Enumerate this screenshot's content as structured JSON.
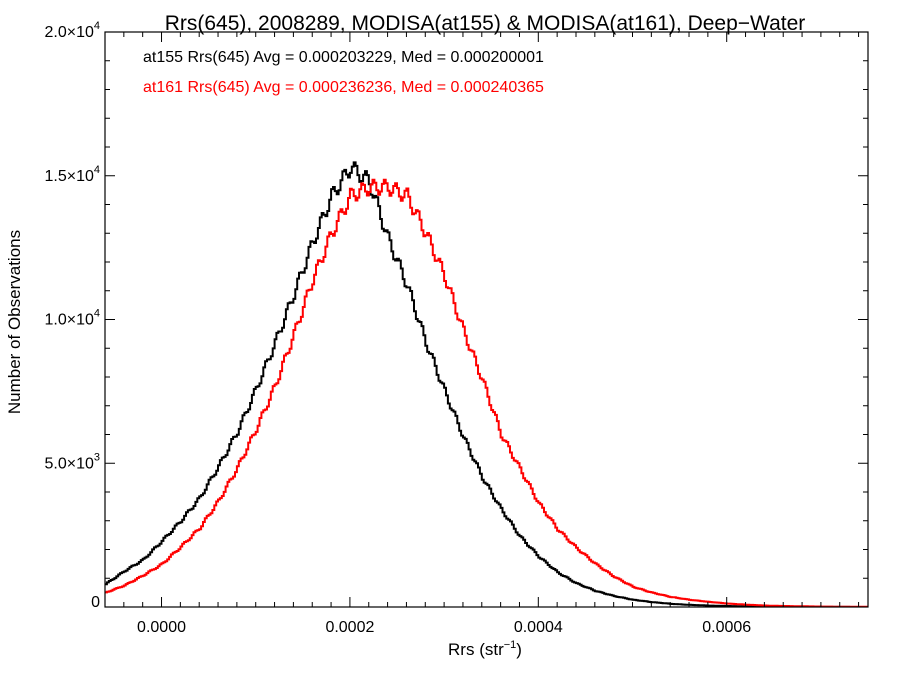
{
  "chart_data": {
    "type": "line",
    "title": "Rrs(645), 2008289, MODISA(at155) & MODISA(at161), Deep−Water",
    "xlabel": "Rrs (str",
    "xlabel_sup": "−1",
    "xlabel_close": ")",
    "ylabel": "Number of Observations",
    "xlim": [
      -6e-05,
      0.00075
    ],
    "ylim": [
      0,
      20000
    ],
    "x_ticks": [
      {
        "value": 0.0,
        "label": "0.0000"
      },
      {
        "value": 0.0002,
        "label": "0.0002"
      },
      {
        "value": 0.0004,
        "label": "0.0004"
      },
      {
        "value": 0.0006,
        "label": "0.0006"
      }
    ],
    "y_ticks": [
      {
        "value": 0,
        "mant": "0",
        "exp": ""
      },
      {
        "value": 5000,
        "mant": "5.0×10",
        "exp": "3"
      },
      {
        "value": 10000,
        "mant": "1.0×10",
        "exp": "4"
      },
      {
        "value": 15000,
        "mant": "1.5×10",
        "exp": "4"
      },
      {
        "value": 20000,
        "mant": "2.0×10",
        "exp": "4"
      }
    ],
    "grid": false,
    "annotations": [
      {
        "text": "at155 Rrs(645) Avg = 0.000203229, Med = 0.000200001",
        "color": "#000000"
      },
      {
        "text": "at161 Rrs(645) Avg = 0.000236236, Med = 0.000240365",
        "color": "#ff0000"
      }
    ],
    "series": [
      {
        "color": "#000000",
        "x": [
          -6e-05,
          -4e-05,
          -2e-05,
          0.0,
          2e-05,
          4e-05,
          6e-05,
          8e-05,
          0.0001,
          0.00012,
          0.00014,
          0.00016,
          0.00018,
          0.0002,
          0.00022,
          0.00024,
          0.00026,
          0.00028,
          0.0003,
          0.00032,
          0.00034,
          0.00036,
          0.00038,
          0.0004,
          0.00042,
          0.00044,
          0.00046,
          0.00048,
          0.0005,
          0.00052,
          0.00054,
          0.00056,
          0.00058,
          0.0006,
          0.00062,
          0.00064,
          0.00066,
          0.00068,
          0.0007,
          0.00072,
          0.00075
        ],
        "y": [
          800,
          1250,
          1650,
          2300,
          3000,
          3800,
          4900,
          6100,
          7600,
          9200,
          10900,
          12700,
          14300,
          15300,
          14800,
          12800,
          11200,
          9200,
          7500,
          5900,
          4500,
          3400,
          2450,
          1750,
          1200,
          820,
          560,
          380,
          250,
          170,
          110,
          75,
          50,
          35,
          22,
          14,
          9,
          6,
          4,
          2,
          1
        ]
      },
      {
        "color": "#ff0000",
        "x": [
          -6e-05,
          -4e-05,
          -2e-05,
          0.0,
          2e-05,
          4e-05,
          6e-05,
          8e-05,
          0.0001,
          0.00012,
          0.00014,
          0.00016,
          0.00018,
          0.0002,
          0.00022,
          0.00024,
          0.00026,
          0.00028,
          0.0003,
          0.00032,
          0.00034,
          0.00036,
          0.00038,
          0.0004,
          0.00042,
          0.00044,
          0.00046,
          0.00048,
          0.0005,
          0.00052,
          0.00054,
          0.00056,
          0.00058,
          0.0006,
          0.00062,
          0.00064,
          0.00066,
          0.00068,
          0.0007,
          0.00072,
          0.00075
        ],
        "y": [
          500,
          750,
          1100,
          1500,
          2100,
          2750,
          3700,
          4850,
          6200,
          7700,
          9500,
          11400,
          13000,
          14300,
          14600,
          14600,
          14300,
          13000,
          11500,
          9600,
          7900,
          6000,
          4800,
          3600,
          2700,
          2050,
          1500,
          1050,
          700,
          500,
          350,
          250,
          180,
          120,
          80,
          50,
          35,
          25,
          15,
          10,
          5
        ]
      }
    ]
  }
}
